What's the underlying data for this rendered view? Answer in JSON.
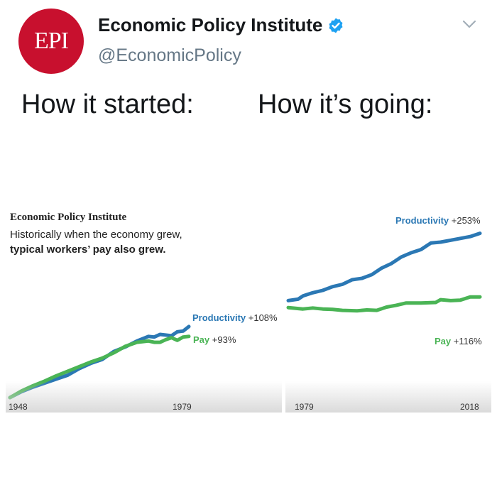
{
  "tweet": {
    "avatar_text": "EPI",
    "display_name": "Economic Policy Institute",
    "handle": "@EconomicPolicy",
    "verified_icon": "verified-badge-icon",
    "menu_icon": "chevron-down-icon",
    "caption_left": "How it started:",
    "caption_right": "How it’s going:"
  },
  "colors": {
    "productivity": "#2b78b4",
    "pay": "#4ab455",
    "brand_red": "#c8102e",
    "handle_gray": "#657786"
  },
  "left_chart": {
    "brand": "Economic Policy Institute",
    "headline_plain": "Historically when the economy grew, ",
    "headline_bold": "typical workers’ pay also grew.",
    "productivity_label": "Productivity",
    "productivity_value": "+108%",
    "pay_label": "Pay",
    "pay_value": "+93%",
    "x_start": "1948",
    "x_end": "1979"
  },
  "right_chart": {
    "productivity_label": "Productivity",
    "productivity_value": "+253%",
    "pay_label": "Pay",
    "pay_value": "+116%",
    "x_start": "1979",
    "x_end": "2018"
  },
  "chart_data": [
    {
      "type": "line",
      "title": "",
      "xlabel": "",
      "ylabel": "",
      "x_range": [
        1948,
        1979
      ],
      "ylim": [
        0,
        110
      ],
      "series": [
        {
          "name": "Productivity",
          "x": [
            1948,
            1950,
            1952,
            1954,
            1956,
            1958,
            1960,
            1962,
            1964,
            1966,
            1968,
            1970,
            1972,
            1973,
            1974,
            1976,
            1977,
            1978,
            1979
          ],
          "values": [
            0,
            9,
            16,
            22,
            28,
            34,
            44,
            52,
            58,
            70,
            77,
            86,
            93,
            92,
            96,
            94,
            100,
            101,
            108
          ]
        },
        {
          "name": "Pay",
          "x": [
            1948,
            1950,
            1952,
            1954,
            1956,
            1958,
            1960,
            1962,
            1964,
            1966,
            1968,
            1970,
            1972,
            1973,
            1974,
            1975,
            1976,
            1977,
            1978,
            1979
          ],
          "values": [
            0,
            10,
            18,
            25,
            33,
            40,
            47,
            54,
            60,
            68,
            78,
            84,
            86,
            84,
            84,
            88,
            91,
            87,
            92,
            93
          ]
        }
      ]
    },
    {
      "type": "line",
      "title": "",
      "xlabel": "",
      "ylabel": "",
      "x_range": [
        1979,
        2018
      ],
      "ylim": [
        0,
        260
      ],
      "series": [
        {
          "name": "Productivity",
          "x": [
            1979,
            1981,
            1982,
            1984,
            1986,
            1988,
            1990,
            1992,
            1994,
            1996,
            1998,
            2000,
            2002,
            2004,
            2006,
            2008,
            2010,
            2012,
            2014,
            2016,
            2018
          ],
          "values": [
            108,
            111,
            118,
            125,
            130,
            138,
            143,
            153,
            156,
            164,
            178,
            188,
            202,
            211,
            218,
            232,
            234,
            238,
            242,
            246,
            253
          ]
        },
        {
          "name": "Pay",
          "x": [
            1979,
            1982,
            1984,
            1986,
            1988,
            1990,
            1993,
            1995,
            1997,
            1999,
            2001,
            2003,
            2006,
            2009,
            2010,
            2012,
            2014,
            2016,
            2018
          ],
          "values": [
            93,
            90,
            92,
            90,
            89,
            87,
            86,
            88,
            87,
            94,
            98,
            103,
            103,
            104,
            110,
            108,
            109,
            116,
            116
          ]
        }
      ]
    }
  ]
}
